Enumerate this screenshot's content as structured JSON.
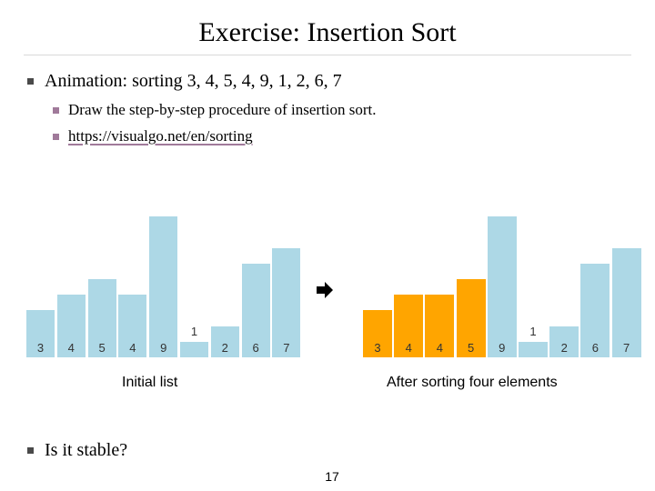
{
  "slide": {
    "title": "Exercise: Insertion Sort",
    "bullet1": "Animation: sorting 3, 4, 5, 4, 9, 1, 2, 6, 7",
    "sub1": "Draw the step-by-step procedure of insertion sort.",
    "sub2": "https://visualgo.net/en/sorting",
    "bullet2": "Is it stable?",
    "page_number": "17",
    "arrow_icon": "right-arrow-icon"
  },
  "charts": {
    "initial": {
      "caption": "Initial list",
      "values": [
        3,
        4,
        5,
        4,
        9,
        1,
        2,
        6,
        7
      ],
      "labels": [
        "3",
        "4",
        "5",
        "4",
        "9",
        "1",
        "2",
        "6",
        "7"
      ],
      "highlighted_count": 0
    },
    "after": {
      "caption": "After sorting four elements",
      "values": [
        3,
        4,
        4,
        5,
        9,
        1,
        2,
        6,
        7
      ],
      "labels": [
        "3",
        "4",
        "4",
        "5",
        "9",
        "1",
        "2",
        "6",
        "7"
      ],
      "highlighted_count": 4
    },
    "colors": {
      "default": "#add8e6",
      "highlight": "#ffa500"
    }
  }
}
